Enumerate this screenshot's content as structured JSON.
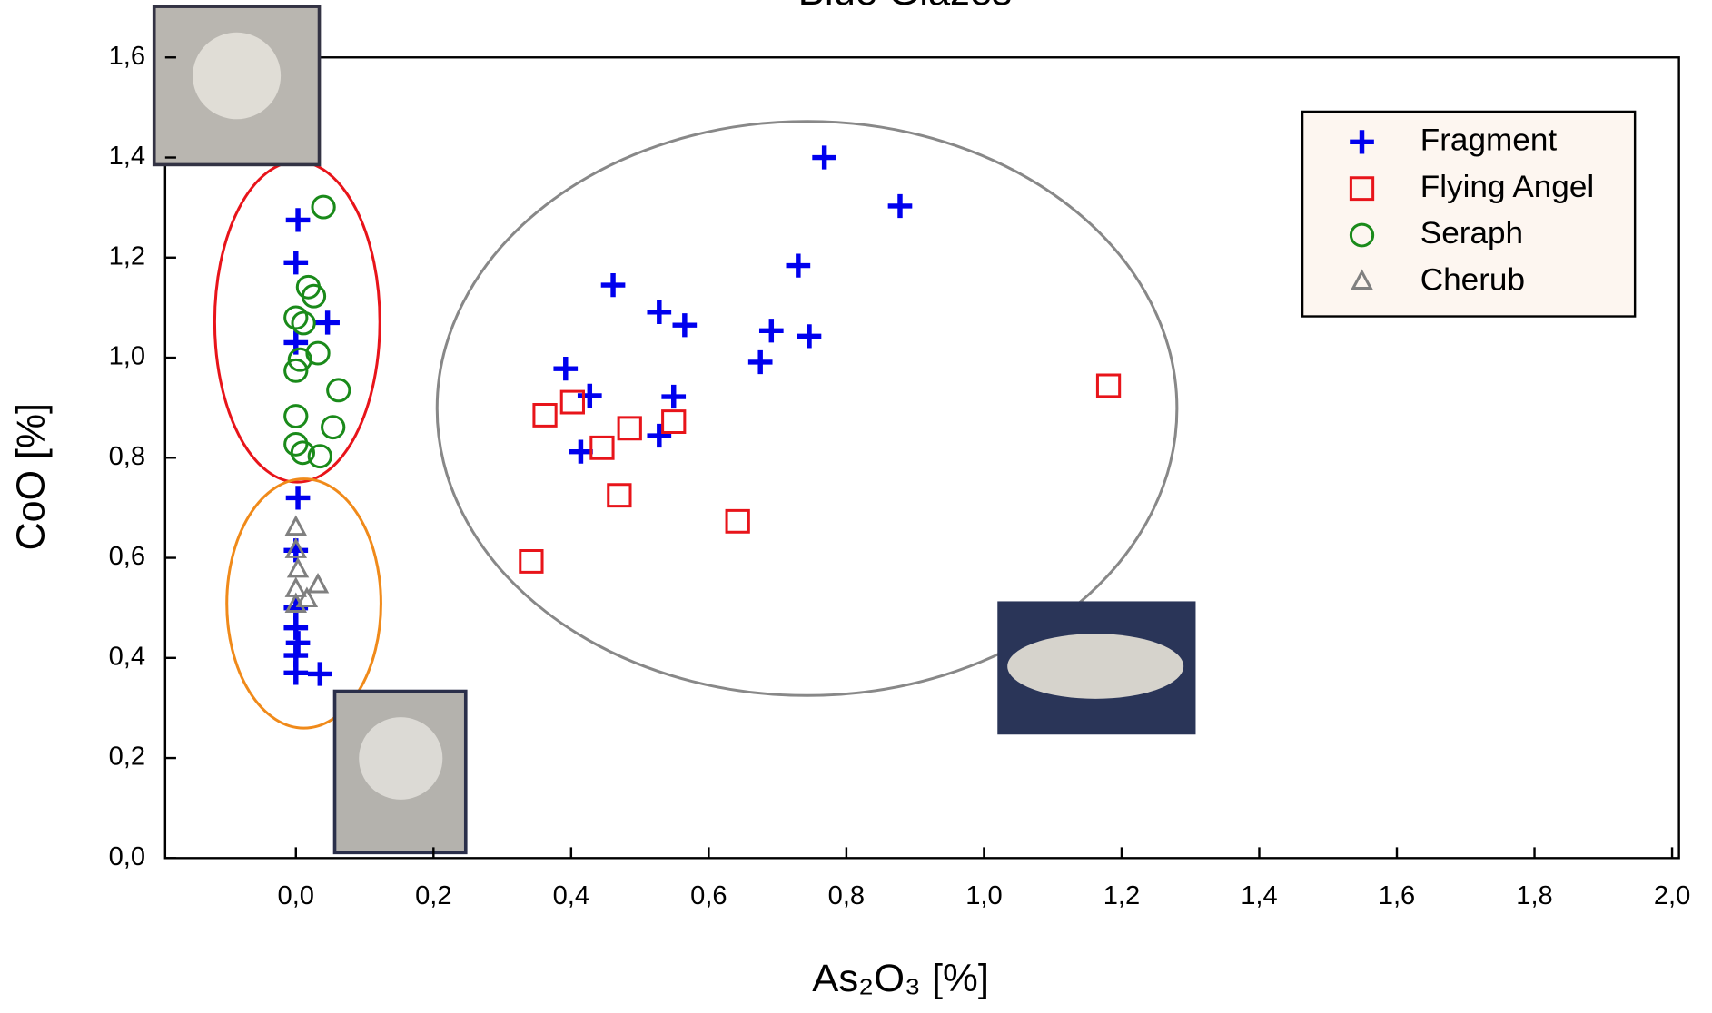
{
  "chart_data": {
    "type": "scatter",
    "title": "Blue Glazes",
    "x_label": "As₂O₃ [%]",
    "y_label": "CoO [%]",
    "xlim": [
      -0.19,
      2.01
    ],
    "ylim": [
      0,
      1.6
    ],
    "xticks": [
      {
        "value": 0,
        "label": "0,0"
      },
      {
        "value": 0.2,
        "label": "0,2"
      },
      {
        "value": 0.4,
        "label": "0,4"
      },
      {
        "value": 0.6,
        "label": "0,6"
      },
      {
        "value": 0.8,
        "label": "0,8"
      },
      {
        "value": 1.0,
        "label": "1,0"
      },
      {
        "value": 1.2,
        "label": "1,2"
      },
      {
        "value": 1.4,
        "label": "1,4"
      },
      {
        "value": 1.6,
        "label": "1,6"
      },
      {
        "value": 1.8,
        "label": "1,8"
      },
      {
        "value": 2.0,
        "label": "2,0"
      }
    ],
    "yticks": [
      {
        "value": 0,
        "label": "0,0"
      },
      {
        "value": 0.2,
        "label": "0,2"
      },
      {
        "value": 0.4,
        "label": "0,4"
      },
      {
        "value": 0.6,
        "label": "0,6"
      },
      {
        "value": 0.8,
        "label": "0,8"
      },
      {
        "value": 1.0,
        "label": "1,0"
      },
      {
        "value": 1.2,
        "label": "1,2"
      },
      {
        "value": 1.4,
        "label": "1,4"
      },
      {
        "value": 1.6,
        "label": "1,6"
      }
    ],
    "legend": "top-right",
    "series": [
      {
        "name": "Fragment",
        "color": "#0000ee",
        "marker": "plus",
        "x": [
          0.003,
          0.0,
          0.046,
          0.0,
          0.003,
          0.0,
          0.0,
          0.0,
          0.003,
          0.0,
          0.0,
          0.035,
          0.768,
          0.878,
          0.73,
          0.461,
          0.528,
          0.565,
          0.691,
          0.746,
          0.675,
          0.392,
          0.427,
          0.549,
          0.414,
          0.528
        ],
        "values": [
          1.275,
          1.19,
          1.07,
          1.03,
          0.72,
          0.615,
          0.5,
          0.46,
          0.43,
          0.405,
          0.37,
          0.368,
          1.4,
          1.303,
          1.184,
          1.145,
          1.091,
          1.065,
          1.054,
          1.043,
          0.991,
          0.978,
          0.924,
          0.922,
          0.812,
          0.844
        ]
      },
      {
        "name": "Flying Angel",
        "color": "#e8141a",
        "marker": "square",
        "x": [
          1.181,
          0.362,
          0.402,
          0.549,
          0.485,
          0.445,
          0.47,
          0.642,
          0.342
        ],
        "values": [
          0.944,
          0.885,
          0.911,
          0.872,
          0.859,
          0.82,
          0.725,
          0.673,
          0.593
        ]
      },
      {
        "name": "Seraph",
        "color": "#1a8a1a",
        "marker": "circle",
        "x": [
          0.04,
          0.018,
          0.026,
          0.0,
          0.011,
          0.032,
          0.006,
          0.0,
          0.062,
          0.054,
          0.0,
          0.0,
          0.01,
          0.035
        ],
        "values": [
          1.301,
          1.141,
          1.123,
          1.08,
          1.069,
          1.009,
          0.996,
          0.974,
          0.935,
          0.861,
          0.883,
          0.827,
          0.81,
          0.803
        ]
      },
      {
        "name": "Cherub",
        "color": "#808080",
        "marker": "triangle",
        "x": [
          0.0,
          0.0,
          0.003,
          0.0,
          0.032,
          0.016,
          0.0
        ],
        "values": [
          0.66,
          0.615,
          0.576,
          0.537,
          0.545,
          0.517,
          0.506
        ]
      }
    ]
  }
}
